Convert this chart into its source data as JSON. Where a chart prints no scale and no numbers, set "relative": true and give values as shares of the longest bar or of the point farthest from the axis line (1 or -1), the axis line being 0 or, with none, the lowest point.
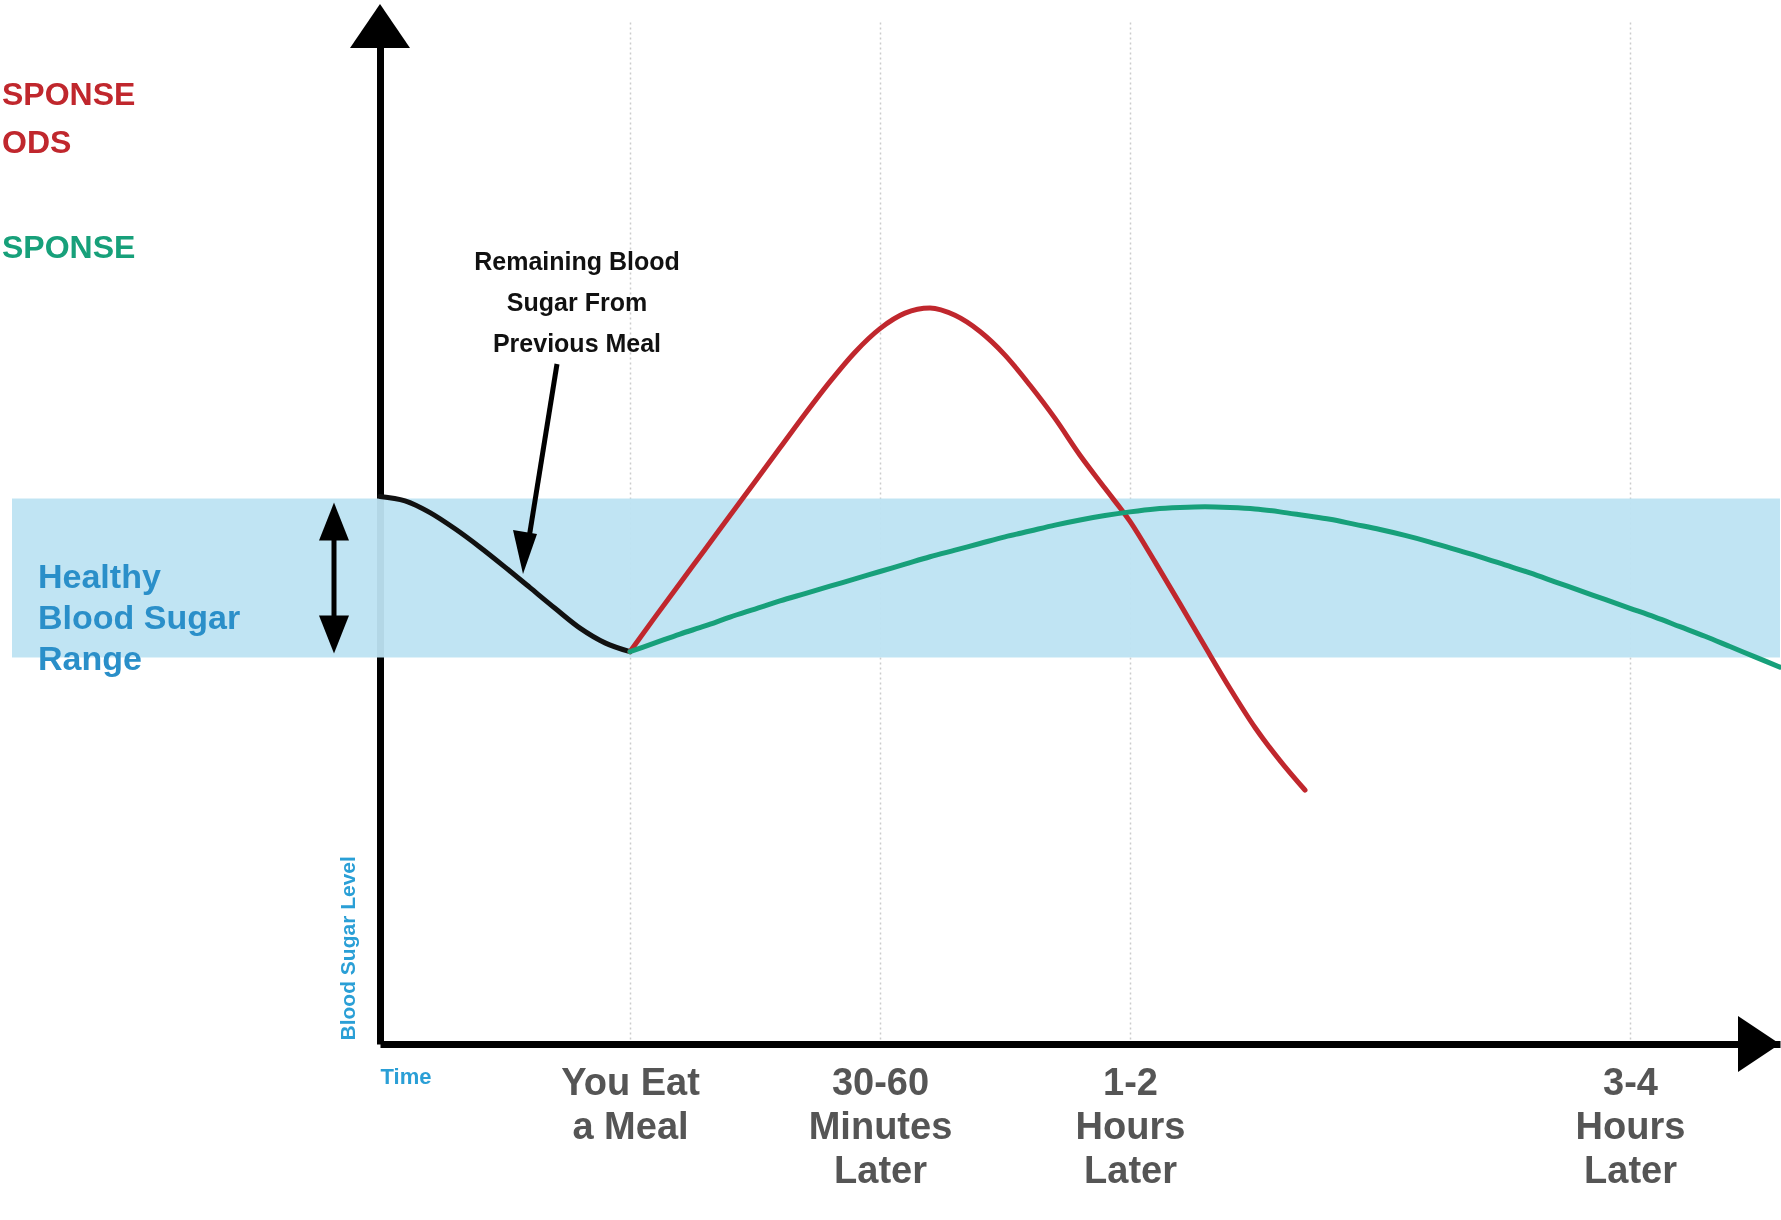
{
  "chart_data": {
    "type": "line",
    "relative": true,
    "xlabel": "Time",
    "ylabel": "Blood Sugar Level",
    "categories": [
      null,
      null,
      null,
      null,
      null,
      null,
      null,
      null,
      null,
      null,
      "You Eat a Meal",
      null,
      null,
      null,
      null,
      null,
      null,
      null,
      null,
      null,
      "30-60 Minutes Later",
      null,
      null,
      null,
      null,
      null,
      null,
      null,
      null,
      null,
      "1-2 Hours Later",
      null,
      null,
      null,
      null,
      null,
      null,
      null,
      null,
      null,
      null,
      null,
      null,
      null,
      null,
      null,
      null,
      null,
      null,
      null,
      "3-4 Hours Later",
      null,
      null,
      null,
      null,
      null,
      null
    ],
    "grid": "x",
    "legend": "top left",
    "line_style": "solid",
    "series": [
      {
        "color": "#111111",
        "values": [
          0.744,
          0.738,
          0.722,
          0.7,
          0.675,
          0.648,
          0.62,
          0.592,
          0.565,
          0.545,
          0.533,
          null,
          null,
          null,
          null,
          null,
          null,
          null,
          null,
          null,
          null,
          null,
          null,
          null,
          null,
          null,
          null,
          null,
          null,
          null,
          null,
          null,
          null,
          null,
          null,
          null,
          null,
          null,
          null,
          null,
          null,
          null,
          null,
          null,
          null,
          null,
          null,
          null,
          null,
          null,
          null,
          null,
          null,
          null,
          null,
          null,
          null
        ]
      },
      {
        "name": "SPONSE\nODS",
        "color": "#c0272d",
        "values": [
          null,
          null,
          null,
          null,
          null,
          null,
          null,
          null,
          null,
          null,
          0.533,
          0.58,
          0.626,
          0.672,
          0.718,
          0.764,
          0.81,
          0.856,
          0.9,
          0.94,
          0.972,
          0.993,
          1,
          0.99,
          0.968,
          0.936,
          0.895,
          0.85,
          0.8,
          0.755,
          0.71,
          0.655,
          0.598,
          0.54,
          0.483,
          0.43,
          0.385,
          0.345,
          null,
          null,
          null,
          null,
          null,
          null,
          null,
          null,
          null,
          null,
          null,
          null,
          null,
          null,
          null,
          null,
          null,
          null,
          null
        ]
      },
      {
        "name": "SPONSE",
        "color": "#17a07a",
        "values": [
          null,
          null,
          null,
          null,
          null,
          null,
          null,
          null,
          null,
          null,
          0.533,
          0.545,
          0.557,
          0.568,
          0.58,
          0.591,
          0.602,
          0.612,
          0.622,
          0.632,
          0.642,
          0.652,
          0.662,
          0.671,
          0.68,
          0.689,
          0.697,
          0.705,
          0.712,
          0.718,
          0.723,
          0.727,
          0.729,
          0.73,
          0.729,
          0.727,
          0.723,
          0.718,
          0.713,
          0.706,
          0.699,
          0.691,
          0.682,
          0.672,
          0.662,
          0.651,
          0.64,
          0.628,
          0.616,
          0.604,
          0.592,
          0.58,
          0.567,
          0.554,
          0.54,
          0.526,
          0.512
        ]
      }
    ],
    "bands": [
      {
        "axis": "y",
        "from": 0.525,
        "to": 0.741,
        "label": "Healthy Blood Sugar Range",
        "color": "#bde3f2"
      }
    ],
    "annotations": [
      "Remaining Blood Sugar From Previous Meal"
    ]
  }
}
